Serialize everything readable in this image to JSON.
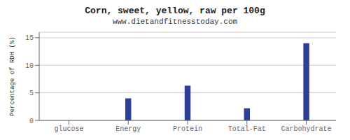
{
  "chart_data": {
    "type": "bar",
    "title": "Corn, sweet, yellow, raw per 100g",
    "subtitle": "www.dietandfitnesstoday.com",
    "ylabel": "Percentage of RDH (%)",
    "categories": [
      "glucose",
      "Energy",
      "Protein",
      "Total-Fat",
      "Carbohydrate"
    ],
    "values": [
      0,
      4.0,
      6.3,
      2.2,
      14.0
    ],
    "color": "#2e4096",
    "ylim": [
      0,
      16
    ],
    "yticks": [
      0,
      5,
      10,
      15
    ],
    "grid": true
  }
}
